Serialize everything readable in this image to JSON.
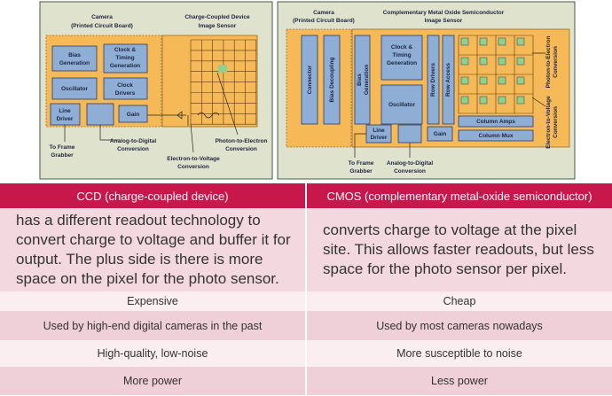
{
  "ccd_diagram": {
    "board_title": [
      "Camera",
      "(Printed Circuit Board)"
    ],
    "sensor_title": [
      "Charge-Coupled Device",
      "Image Sensor"
    ],
    "bias": [
      "Bias",
      "Generation"
    ],
    "clock_timing": [
      "Clock &",
      "Timing",
      "Generation"
    ],
    "oscillator": "Oscillator",
    "clock_drivers": [
      "Clock",
      "Drivers"
    ],
    "line_driver": [
      "Line",
      "Driver"
    ],
    "gain": "Gain",
    "frame_grabber": [
      "To Frame",
      "Grabber"
    ],
    "adc": [
      "Analog-to-Digital",
      "Conversion"
    ],
    "photon": [
      "Photon-to-Electron",
      "Conversion"
    ],
    "electron": [
      "Electron-to-Voltage",
      "Conversion"
    ]
  },
  "cmos_diagram": {
    "board_title": [
      "Camera",
      "(Printed Circuit Board)"
    ],
    "sensor_title": [
      "Complementary Metal Oxide Semiconductor",
      "Image Sensor"
    ],
    "connector": "Connector",
    "bias_decoupling": "Bias Decoupling",
    "bias": [
      "Bias",
      "Generation"
    ],
    "clock_timing": [
      "Clock &",
      "Timing",
      "Generation"
    ],
    "oscillator": "Oscillator",
    "row_drivers": "Row Drivers",
    "row_access": "Row Access",
    "column_amps": "Column Amps",
    "column_mux": "Column Mux",
    "line_driver": [
      "Line",
      "Driver"
    ],
    "gain": "Gain",
    "frame_grabber": [
      "To Frame",
      "Grabber"
    ],
    "adc": [
      "Analog-to-Digital",
      "Conversion"
    ],
    "photon": [
      "Photon-to-Electron",
      "Conversion"
    ],
    "electron": [
      "Electron-to-Voltage",
      "Conversion"
    ]
  },
  "table": {
    "header": [
      "CCD (charge-coupled device)",
      "CMOS (complementary metal-oxide semiconductor)"
    ],
    "rows": [
      [
        "has a different readout technology to convert charge to voltage and buffer it for output. The plus side is there is more space on the pixel for the photo sensor.",
        "converts charge to voltage at the pixel site. This allows faster readouts, but less space for the photo sensor per pixel."
      ],
      [
        "Expensive",
        "Cheap"
      ],
      [
        "Used by high-end digital cameras in the past",
        "Used by most cameras nowadays"
      ],
      [
        "High-quality, low-noise",
        "More susceptible to noise"
      ],
      [
        "More power",
        "Less power"
      ]
    ]
  }
}
